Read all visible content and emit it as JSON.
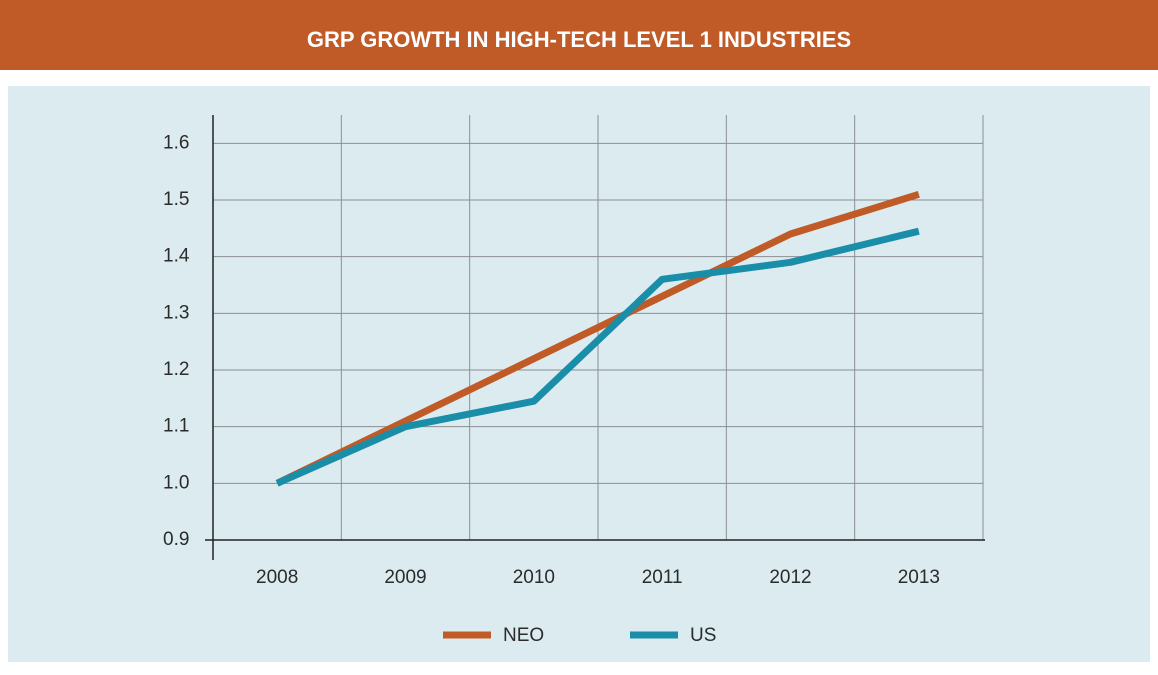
{
  "chart_data": {
    "type": "line",
    "title": "GRP GROWTH IN HIGH-TECH LEVEL 1 INDUSTRIES",
    "categories": [
      "2008",
      "2009",
      "2010",
      "2011",
      "2012",
      "2013"
    ],
    "series": [
      {
        "name": "NEO",
        "color": "#c05a26",
        "values": [
          1.0,
          1.11,
          1.22,
          1.33,
          1.44,
          1.51
        ]
      },
      {
        "name": "US",
        "color": "#1a8ea8",
        "values": [
          1.0,
          1.1,
          1.145,
          1.36,
          1.39,
          1.445
        ]
      }
    ],
    "ylim": [
      0.9,
      1.65
    ],
    "yticks": [
      {
        "value": 0.9,
        "label": "0.9"
      },
      {
        "value": 1,
        "label": "1.0"
      },
      {
        "value": 1.1,
        "label": "1.1"
      },
      {
        "value": 1.2,
        "label": "1.2"
      },
      {
        "value": 1.3,
        "label": "1.3"
      },
      {
        "value": 1.4,
        "label": "1.4"
      },
      {
        "value": 1.5,
        "label": "1.5"
      },
      {
        "value": 1.6,
        "label": "1.6"
      }
    ],
    "grid": true
  }
}
